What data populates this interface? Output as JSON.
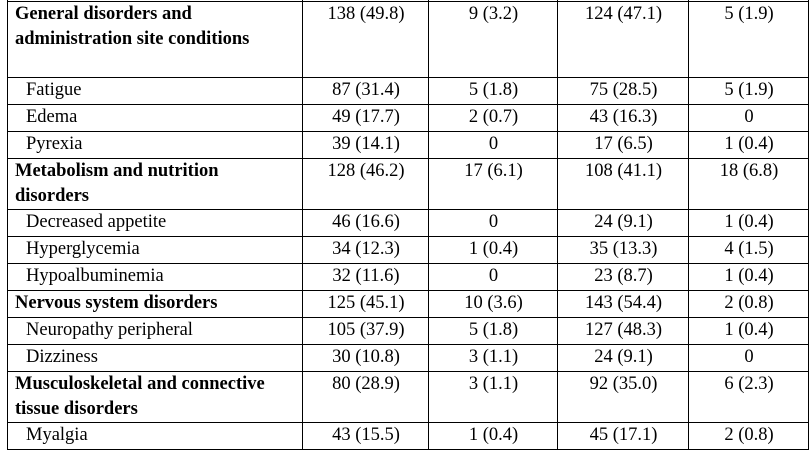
{
  "table": {
    "rows": [
      {
        "kind": "soc",
        "lines": 3,
        "label": "General disorders and administration site conditions",
        "c1": "138 (49.8)",
        "c2": "9 (3.2)",
        "c3": "124 (47.1)",
        "c4": "5 (1.9)"
      },
      {
        "kind": "pt",
        "lines": 1,
        "label": "Fatigue",
        "c1": "87 (31.4)",
        "c2": "5 (1.8)",
        "c3": "75 (28.5)",
        "c4": "5 (1.9)"
      },
      {
        "kind": "pt",
        "lines": 1,
        "label": "Edema",
        "c1": "49 (17.7)",
        "c2": "2 (0.7)",
        "c3": "43 (16.3)",
        "c4": "0"
      },
      {
        "kind": "pt",
        "lines": 1,
        "label": "Pyrexia",
        "c1": "39 (14.1)",
        "c2": "0",
        "c3": "17 (6.5)",
        "c4": "1 (0.4)"
      },
      {
        "kind": "soc",
        "lines": 2,
        "label": "Metabolism and nutrition disorders",
        "c1": "128 (46.2)",
        "c2": "17 (6.1)",
        "c3": "108 (41.1)",
        "c4": "18 (6.8)"
      },
      {
        "kind": "pt",
        "lines": 1,
        "label": "Decreased appetite",
        "c1": "46 (16.6)",
        "c2": "0",
        "c3": "24 (9.1)",
        "c4": "1 (0.4)"
      },
      {
        "kind": "pt",
        "lines": 1,
        "label": "Hyperglycemia",
        "c1": "34 (12.3)",
        "c2": "1 (0.4)",
        "c3": "35 (13.3)",
        "c4": "4 (1.5)"
      },
      {
        "kind": "pt",
        "lines": 1,
        "label": "Hypoalbuminemia",
        "c1": "32 (11.6)",
        "c2": "0",
        "c3": "23 (8.7)",
        "c4": "1 (0.4)"
      },
      {
        "kind": "soc",
        "lines": 1,
        "label": "Nervous system disorders",
        "c1": "125 (45.1)",
        "c2": "10 (3.6)",
        "c3": "143 (54.4)",
        "c4": "2 (0.8)"
      },
      {
        "kind": "pt",
        "lines": 1,
        "label": "Neuropathy peripheral",
        "c1": "105 (37.9)",
        "c2": "5 (1.8)",
        "c3": "127 (48.3)",
        "c4": "1 (0.4)"
      },
      {
        "kind": "pt",
        "lines": 1,
        "label": "Dizziness",
        "c1": "30 (10.8)",
        "c2": "3 (1.1)",
        "c3": "24 (9.1)",
        "c4": "0"
      },
      {
        "kind": "soc",
        "lines": 2,
        "label": "Musculoskeletal and connective tissue disorders",
        "c1": "80 (28.9)",
        "c2": "3 (1.1)",
        "c3": "92 (35.0)",
        "c4": "6 (2.3)"
      },
      {
        "kind": "pt",
        "lines": 1,
        "label": "Myalgia",
        "c1": "43 (15.5)",
        "c2": "1 (0.4)",
        "c3": "45 (17.1)",
        "c4": "2 (0.8)"
      }
    ]
  }
}
